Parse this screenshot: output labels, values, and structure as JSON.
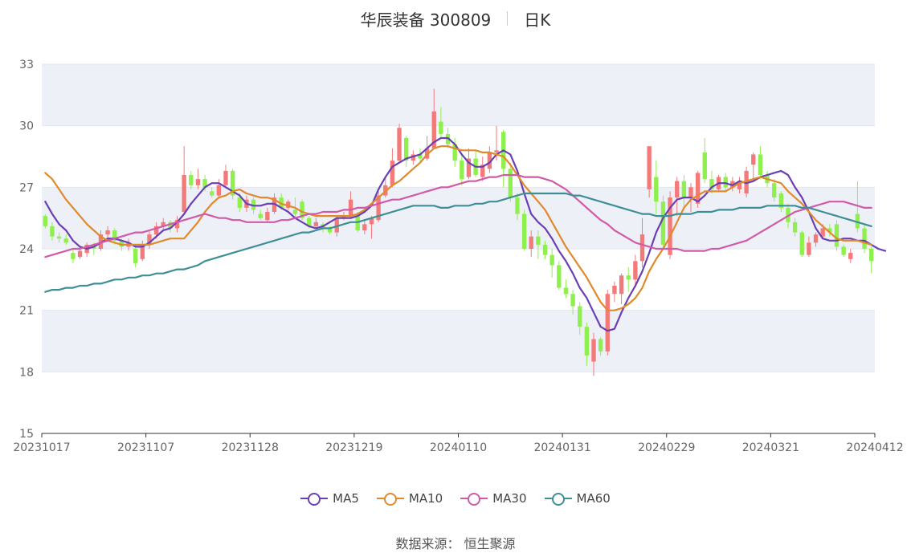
{
  "title": {
    "name": "华辰装备 300809",
    "period": "日K"
  },
  "source": {
    "label": "数据来源：",
    "value": "恒生聚源"
  },
  "chart_data": {
    "type": "candlestick",
    "ylim": [
      15,
      33
    ],
    "yticks": [
      15,
      18,
      21,
      24,
      27,
      30,
      33
    ],
    "xticks": [
      "20231017",
      "20231107",
      "20231128",
      "20231219",
      "20240110",
      "20240131",
      "20240229",
      "20240321",
      "20240412"
    ],
    "colors": {
      "up": "#f47a7a",
      "down": "#8ef04c",
      "band": "#eef0f8"
    },
    "candles": [
      [
        25.6,
        25.1,
        25.7,
        25.0
      ],
      [
        25.1,
        24.6,
        25.3,
        24.4
      ],
      [
        24.6,
        24.5,
        24.8,
        24.3
      ],
      [
        24.5,
        24.3,
        24.7,
        24.2
      ],
      [
        23.8,
        23.5,
        24.0,
        23.3
      ],
      [
        23.6,
        23.9,
        24.1,
        23.5
      ],
      [
        23.8,
        24.2,
        24.3,
        23.6
      ],
      [
        24.1,
        24.0,
        24.3,
        23.7
      ],
      [
        24.0,
        24.7,
        24.9,
        23.9
      ],
      [
        24.7,
        24.9,
        25.1,
        24.5
      ],
      [
        24.9,
        24.4,
        25.0,
        24.2
      ],
      [
        24.4,
        24.1,
        24.5,
        23.9
      ],
      [
        24.1,
        24.3,
        24.5,
        23.9
      ],
      [
        24.0,
        23.3,
        24.1,
        23.1
      ],
      [
        23.5,
        24.2,
        24.4,
        23.4
      ],
      [
        24.2,
        24.7,
        24.9,
        24.0
      ],
      [
        24.7,
        25.1,
        25.3,
        24.5
      ],
      [
        25.1,
        25.3,
        25.5,
        24.9
      ],
      [
        25.3,
        25.0,
        25.4,
        24.8
      ],
      [
        25.0,
        25.4,
        25.6,
        24.8
      ],
      [
        25.8,
        27.6,
        29.0,
        25.7
      ],
      [
        27.6,
        27.1,
        27.8,
        26.9
      ],
      [
        27.1,
        27.4,
        27.9,
        26.9
      ],
      [
        27.4,
        27.0,
        27.6,
        26.8
      ],
      [
        26.8,
        26.6,
        27.0,
        26.5
      ],
      [
        26.6,
        27.1,
        27.4,
        26.5
      ],
      [
        27.1,
        27.8,
        28.1,
        27.0
      ],
      [
        27.8,
        26.6,
        27.9,
        26.4
      ],
      [
        26.5,
        26.0,
        26.7,
        25.8
      ],
      [
        26.0,
        26.4,
        26.6,
        25.8
      ],
      [
        26.4,
        25.9,
        26.5,
        25.7
      ],
      [
        25.7,
        25.5,
        25.9,
        25.4
      ],
      [
        25.4,
        25.8,
        26.0,
        25.3
      ],
      [
        25.8,
        26.5,
        26.7,
        25.7
      ],
      [
        26.5,
        26.0,
        26.7,
        25.9
      ],
      [
        26.0,
        26.3,
        26.4,
        25.9
      ],
      [
        25.9,
        25.7,
        26.5,
        25.5
      ],
      [
        26.3,
        25.5,
        26.4,
        25.4
      ],
      [
        25.5,
        25.1,
        25.6,
        25.0
      ],
      [
        25.1,
        25.3,
        25.5,
        25.0
      ],
      [
        25.2,
        25.0,
        25.3,
        24.8
      ],
      [
        25.0,
        24.8,
        25.1,
        24.7
      ],
      [
        24.8,
        25.5,
        25.6,
        24.6
      ],
      [
        25.5,
        25.6,
        25.8,
        25.4
      ],
      [
        25.6,
        26.4,
        26.8,
        25.5
      ],
      [
        25.6,
        24.9,
        25.8,
        24.8
      ],
      [
        24.9,
        25.2,
        25.4,
        24.7
      ],
      [
        25.2,
        25.5,
        25.6,
        24.5
      ],
      [
        25.4,
        26.6,
        26.8,
        25.3
      ],
      [
        26.6,
        27.1,
        27.5,
        26.5
      ],
      [
        27.1,
        28.3,
        28.9,
        27.0
      ],
      [
        28.3,
        29.9,
        30.1,
        28.2
      ],
      [
        29.4,
        28.3,
        29.5,
        28.0
      ],
      [
        28.3,
        28.6,
        28.8,
        28.1
      ],
      [
        28.6,
        28.4,
        28.9,
        28.2
      ],
      [
        28.4,
        28.9,
        29.5,
        28.3
      ],
      [
        28.9,
        30.7,
        31.8,
        28.9
      ],
      [
        30.2,
        29.6,
        30.9,
        29.4
      ],
      [
        29.6,
        29.1,
        29.9,
        28.9
      ],
      [
        29.1,
        28.3,
        29.4,
        28.0
      ],
      [
        28.3,
        27.4,
        28.6,
        27.1
      ],
      [
        27.5,
        28.4,
        28.9,
        27.4
      ],
      [
        28.4,
        27.6,
        28.8,
        27.5
      ],
      [
        27.5,
        28.1,
        28.5,
        27.3
      ],
      [
        27.9,
        28.7,
        29.0,
        27.7
      ],
      [
        28.7,
        28.8,
        30.0,
        28.3
      ],
      [
        29.7,
        27.9,
        29.8,
        27.0
      ],
      [
        27.9,
        26.5,
        28.2,
        26.3
      ],
      [
        26.5,
        25.7,
        26.7,
        25.4
      ],
      [
        25.7,
        24.0,
        25.9,
        23.9
      ],
      [
        24.0,
        24.6,
        24.9,
        23.6
      ],
      [
        24.6,
        24.2,
        24.9,
        23.5
      ],
      [
        24.2,
        23.7,
        24.4,
        23.5
      ],
      [
        23.7,
        23.2,
        24.0,
        22.6
      ],
      [
        23.2,
        22.1,
        23.4,
        22.0
      ],
      [
        22.1,
        21.8,
        22.5,
        21.6
      ],
      [
        21.8,
        21.2,
        22.0,
        20.8
      ],
      [
        21.2,
        20.2,
        21.4,
        19.8
      ],
      [
        20.2,
        18.8,
        20.4,
        18.3
      ],
      [
        18.5,
        19.6,
        19.9,
        17.8
      ],
      [
        19.6,
        19.0,
        19.7,
        18.8
      ],
      [
        19.0,
        21.8,
        22.0,
        18.8
      ],
      [
        21.8,
        22.2,
        22.4,
        21.4
      ],
      [
        21.8,
        22.7,
        22.8,
        21.3
      ],
      [
        22.7,
        22.5,
        23.1,
        21.9
      ],
      [
        22.5,
        23.4,
        23.7,
        22.1
      ],
      [
        23.4,
        24.7,
        25.5,
        23.1
      ],
      [
        26.9,
        29.0,
        29.0,
        26.5
      ],
      [
        27.5,
        26.3,
        28.3,
        25.7
      ],
      [
        26.3,
        24.2,
        26.6,
        24.0
      ],
      [
        23.7,
        26.5,
        26.8,
        23.5
      ],
      [
        26.5,
        27.3,
        27.5,
        25.6
      ],
      [
        27.3,
        26.5,
        27.6,
        26.0
      ],
      [
        26.5,
        27.0,
        27.2,
        25.8
      ],
      [
        26.2,
        27.7,
        27.8,
        26.0
      ],
      [
        28.7,
        27.4,
        29.4,
        27.2
      ],
      [
        27.4,
        26.9,
        27.8,
        26.7
      ],
      [
        26.9,
        27.5,
        27.6,
        26.8
      ],
      [
        27.5,
        27.0,
        27.7,
        26.8
      ],
      [
        27.0,
        27.3,
        27.5,
        26.8
      ],
      [
        26.9,
        27.3,
        27.5,
        26.7
      ],
      [
        26.7,
        27.8,
        28.0,
        26.5
      ],
      [
        28.1,
        28.6,
        28.7,
        27.3
      ],
      [
        28.6,
        27.6,
        29.0,
        27.4
      ],
      [
        27.6,
        27.2,
        27.8,
        27.0
      ],
      [
        27.2,
        26.5,
        27.4,
        26.3
      ],
      [
        26.7,
        26.0,
        26.8,
        25.8
      ],
      [
        26.0,
        25.3,
        26.2,
        25.0
      ],
      [
        25.3,
        24.8,
        25.5,
        24.6
      ],
      [
        24.8,
        23.7,
        24.9,
        23.6
      ],
      [
        23.7,
        24.3,
        24.6,
        23.6
      ],
      [
        24.3,
        24.7,
        24.8,
        24.1
      ],
      [
        24.6,
        25.0,
        25.2,
        24.5
      ],
      [
        25.0,
        24.8,
        25.2,
        24.6
      ],
      [
        25.2,
        24.1,
        25.4,
        23.9
      ],
      [
        24.1,
        23.7,
        24.2,
        23.6
      ],
      [
        23.5,
        23.8,
        24.0,
        23.3
      ],
      [
        25.7,
        25.0,
        27.3,
        24.8
      ],
      [
        25.0,
        24.0,
        25.2,
        23.8
      ],
      [
        24.0,
        23.4,
        24.1,
        22.8
      ]
    ],
    "series": [
      {
        "name": "MA5",
        "color": "#6a3fb5",
        "values": [
          26.3,
          25.7,
          25.2,
          24.9,
          24.4,
          24.1,
          24.0,
          24.1,
          24.3,
          24.5,
          24.5,
          24.4,
          24.3,
          24.1,
          24.1,
          24.3,
          24.6,
          24.9,
          25.0,
          25.3,
          25.7,
          26.2,
          26.6,
          27.0,
          27.2,
          27.2,
          27.0,
          26.8,
          26.6,
          26.2,
          26.1,
          26.1,
          26.2,
          26.2,
          26.0,
          25.8,
          25.5,
          25.3,
          25.1,
          25.0,
          25.1,
          25.3,
          25.5,
          25.5,
          25.5,
          25.6,
          25.8,
          26.1,
          26.9,
          27.5,
          28.0,
          28.2,
          28.4,
          28.5,
          28.6,
          28.9,
          29.2,
          29.4,
          29.4,
          29.1,
          28.6,
          28.2,
          28.0,
          28.0,
          28.2,
          28.6,
          28.8,
          28.6,
          27.8,
          26.7,
          25.7,
          25.3,
          25.0,
          24.5,
          23.9,
          23.4,
          22.8,
          22.1,
          21.6,
          20.9,
          20.2,
          20.0,
          20.1,
          20.9,
          21.6,
          22.2,
          22.9,
          23.8,
          24.8,
          25.5,
          26.0,
          26.4,
          26.5,
          26.5,
          26.3,
          26.6,
          27.0,
          27.2,
          27.2,
          27.1,
          27.3,
          27.2,
          27.3,
          27.5,
          27.6,
          27.7,
          27.8,
          27.6,
          27.0,
          26.5,
          25.8,
          25.0,
          24.5,
          24.4,
          24.4,
          24.5,
          24.5,
          24.4,
          24.4,
          24.2,
          24.0,
          23.9
        ]
      },
      {
        "name": "MA10",
        "color": "#e08a2b",
        "values": [
          27.7,
          27.4,
          26.9,
          26.4,
          26.0,
          25.6,
          25.2,
          24.9,
          24.6,
          24.4,
          24.3,
          24.2,
          24.2,
          24.2,
          24.2,
          24.2,
          24.3,
          24.4,
          24.5,
          24.5,
          24.5,
          24.9,
          25.3,
          25.8,
          26.2,
          26.5,
          26.6,
          26.8,
          26.9,
          26.7,
          26.6,
          26.5,
          26.5,
          26.4,
          26.2,
          26.1,
          26.0,
          25.8,
          25.7,
          25.6,
          25.6,
          25.6,
          25.6,
          25.6,
          25.6,
          25.7,
          25.9,
          26.2,
          26.5,
          26.8,
          27.1,
          27.3,
          27.6,
          27.9,
          28.2,
          28.6,
          28.9,
          29.0,
          29.0,
          28.9,
          28.8,
          28.8,
          28.8,
          28.7,
          28.7,
          28.6,
          28.5,
          28.1,
          27.6,
          27.1,
          26.7,
          26.3,
          25.9,
          25.3,
          24.7,
          24.1,
          23.6,
          23.1,
          22.6,
          22.0,
          21.4,
          21.0,
          21.0,
          21.1,
          21.3,
          21.6,
          22.1,
          22.9,
          23.5,
          24.0,
          24.6,
          25.3,
          26.0,
          26.4,
          26.6,
          26.8,
          26.8,
          26.8,
          26.8,
          27.0,
          27.2,
          27.3,
          27.4,
          27.5,
          27.4,
          27.3,
          27.2,
          26.8,
          26.5,
          26.2,
          25.8,
          25.4,
          25.1,
          24.8,
          24.5,
          24.4,
          24.4,
          24.4,
          24.3,
          24.2
        ]
      },
      {
        "name": "MA30",
        "color": "#d05aa8",
        "values": [
          23.6,
          23.7,
          23.8,
          23.9,
          24.0,
          24.0,
          24.1,
          24.2,
          24.3,
          24.4,
          24.5,
          24.6,
          24.7,
          24.8,
          24.8,
          24.9,
          25.0,
          25.1,
          25.2,
          25.3,
          25.4,
          25.5,
          25.6,
          25.7,
          25.6,
          25.5,
          25.5,
          25.4,
          25.4,
          25.3,
          25.3,
          25.3,
          25.3,
          25.3,
          25.4,
          25.4,
          25.5,
          25.6,
          25.7,
          25.7,
          25.8,
          25.8,
          25.8,
          25.9,
          25.9,
          26.0,
          26.0,
          26.1,
          26.2,
          26.3,
          26.4,
          26.4,
          26.5,
          26.6,
          26.7,
          26.8,
          26.9,
          27.0,
          27.0,
          27.1,
          27.2,
          27.3,
          27.3,
          27.4,
          27.5,
          27.5,
          27.6,
          27.6,
          27.6,
          27.5,
          27.5,
          27.5,
          27.4,
          27.3,
          27.1,
          26.9,
          26.6,
          26.3,
          26.0,
          25.7,
          25.4,
          25.2,
          24.9,
          24.7,
          24.5,
          24.3,
          24.2,
          24.1,
          24.0,
          24.0,
          24.0,
          24.0,
          23.9,
          23.9,
          23.9,
          23.9,
          24.0,
          24.0,
          24.1,
          24.2,
          24.3,
          24.4,
          24.6,
          24.8,
          25.0,
          25.2,
          25.4,
          25.6,
          25.8,
          25.9,
          26.0,
          26.1,
          26.2,
          26.3,
          26.3,
          26.3,
          26.2,
          26.1,
          26.0,
          26.0
        ]
      },
      {
        "name": "MA60",
        "color": "#3e8f95",
        "values": [
          21.9,
          22.0,
          22.0,
          22.1,
          22.1,
          22.2,
          22.2,
          22.3,
          22.3,
          22.4,
          22.5,
          22.5,
          22.6,
          22.6,
          22.7,
          22.7,
          22.8,
          22.8,
          22.9,
          23.0,
          23.0,
          23.1,
          23.2,
          23.4,
          23.5,
          23.6,
          23.7,
          23.8,
          23.9,
          24.0,
          24.1,
          24.2,
          24.3,
          24.4,
          24.5,
          24.6,
          24.7,
          24.8,
          24.8,
          24.9,
          25.0,
          25.0,
          25.1,
          25.2,
          25.3,
          25.3,
          25.4,
          25.5,
          25.6,
          25.7,
          25.8,
          25.9,
          26.0,
          26.1,
          26.1,
          26.1,
          26.1,
          26.0,
          26.0,
          26.1,
          26.1,
          26.1,
          26.2,
          26.2,
          26.3,
          26.3,
          26.4,
          26.5,
          26.6,
          26.7,
          26.7,
          26.7,
          26.7,
          26.7,
          26.7,
          26.7,
          26.6,
          26.6,
          26.5,
          26.4,
          26.3,
          26.2,
          26.1,
          26.0,
          25.9,
          25.8,
          25.7,
          25.7,
          25.6,
          25.6,
          25.6,
          25.7,
          25.7,
          25.7,
          25.8,
          25.8,
          25.8,
          25.9,
          25.9,
          25.9,
          26.0,
          26.0,
          26.0,
          26.0,
          26.1,
          26.1,
          26.1,
          26.1,
          26.1,
          26.0,
          26.0,
          25.9,
          25.8,
          25.7,
          25.6,
          25.5,
          25.4,
          25.3,
          25.2,
          25.1
        ]
      }
    ]
  }
}
